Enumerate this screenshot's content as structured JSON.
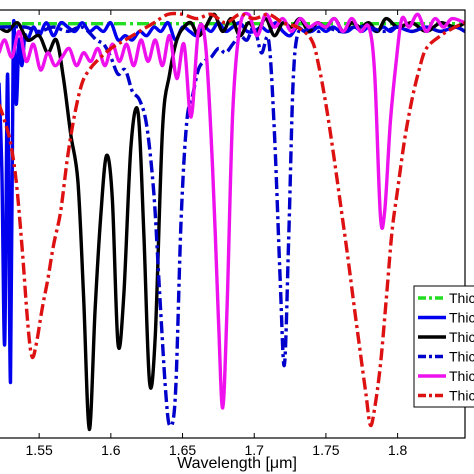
{
  "chart_data": {
    "type": "line",
    "xlabel": "Wavelength [μm]",
    "xlim": [
      1.522,
      1.847
    ],
    "ylim": [
      0,
      1
    ],
    "x_ticks": [
      1.55,
      1.6,
      1.65,
      1.7,
      1.75,
      1.8
    ],
    "x_tick_labels": [
      "1.55",
      "1.6",
      "1.65",
      "1.7",
      "1.75",
      "1.8"
    ],
    "grid": false,
    "legend_position": "bottom-right",
    "series": [
      {
        "name": "Thic",
        "color": "#22dd22",
        "dash": "dashdot",
        "x": [
          1.522,
          1.55,
          1.6,
          1.65,
          1.7,
          1.75,
          1.8,
          1.847
        ],
        "y": [
          0.968,
          0.968,
          0.968,
          0.968,
          0.968,
          0.968,
          0.968,
          0.968
        ]
      },
      {
        "name": "Thic",
        "color": "#0000ee",
        "dash": "solid",
        "x": [
          1.522,
          1.524,
          1.526,
          1.528,
          1.53,
          1.532,
          1.534,
          1.536,
          1.538,
          1.54,
          1.542,
          1.546,
          1.55,
          1.555,
          1.56,
          1.565,
          1.57,
          1.575,
          1.58,
          1.585,
          1.59,
          1.595,
          1.6,
          1.605,
          1.61,
          1.615,
          1.62,
          1.625,
          1.63,
          1.635,
          1.64,
          1.645,
          1.65,
          1.655,
          1.66,
          1.665,
          1.67,
          1.675,
          1.68,
          1.685,
          1.69,
          1.695,
          1.7,
          1.705,
          1.71,
          1.715,
          1.72,
          1.725,
          1.73,
          1.735,
          1.74,
          1.745,
          1.75,
          1.755,
          1.76,
          1.765,
          1.77,
          1.775,
          1.78,
          1.785,
          1.79,
          1.795,
          1.8,
          1.81,
          1.82,
          1.83,
          1.84,
          1.847
        ],
        "y": [
          0.83,
          0.62,
          0.22,
          0.85,
          0.13,
          0.95,
          0.78,
          0.93,
          0.87,
          0.94,
          0.93,
          0.96,
          0.94,
          0.97,
          0.94,
          0.97,
          0.96,
          0.95,
          0.97,
          0.95,
          0.96,
          0.95,
          0.97,
          0.93,
          0.94,
          0.93,
          0.95,
          0.94,
          0.96,
          0.95,
          0.97,
          0.93,
          0.96,
          0.95,
          0.94,
          0.96,
          0.95,
          0.97,
          0.95,
          0.96,
          0.97,
          0.95,
          0.95,
          0.96,
          0.95,
          0.97,
          0.95,
          0.94,
          0.96,
          0.95,
          0.95,
          0.96,
          0.95,
          0.96,
          0.95,
          0.95,
          0.96,
          0.95,
          0.96,
          0.95,
          0.96,
          0.95,
          0.96,
          0.95,
          0.96,
          0.95,
          0.96,
          0.95
        ]
      },
      {
        "name": "Thic",
        "color": "#000000",
        "dash": "solid",
        "x": [
          1.522,
          1.528,
          1.535,
          1.542,
          1.55,
          1.556,
          1.562,
          1.567,
          1.572,
          1.577,
          1.581,
          1.585,
          1.589,
          1.593,
          1.597,
          1.601,
          1.605,
          1.609,
          1.614,
          1.619,
          1.623,
          1.627,
          1.631,
          1.636,
          1.641,
          1.646,
          1.651,
          1.656,
          1.661,
          1.666,
          1.672,
          1.678,
          1.684,
          1.69,
          1.696,
          1.702,
          1.708,
          1.714,
          1.72,
          1.726,
          1.732,
          1.738,
          1.744,
          1.75,
          1.756,
          1.762,
          1.768,
          1.774,
          1.78,
          1.786,
          1.792,
          1.8,
          1.81,
          1.82,
          1.83,
          1.84,
          1.847
        ],
        "y": [
          0.96,
          0.95,
          0.97,
          0.93,
          0.94,
          0.9,
          0.93,
          0.84,
          0.71,
          0.6,
          0.33,
          0.02,
          0.3,
          0.52,
          0.66,
          0.56,
          0.22,
          0.33,
          0.68,
          0.76,
          0.48,
          0.13,
          0.24,
          0.72,
          0.85,
          0.93,
          0.96,
          0.97,
          0.94,
          0.96,
          0.99,
          0.95,
          0.98,
          0.94,
          0.97,
          0.95,
          0.98,
          0.94,
          0.97,
          0.96,
          0.98,
          0.95,
          0.97,
          0.96,
          0.98,
          0.95,
          0.97,
          0.96,
          0.97,
          0.95,
          0.98,
          0.96,
          0.97,
          0.95,
          0.97,
          0.96,
          0.97
        ]
      },
      {
        "name": "Thic",
        "color": "#0000cc",
        "dash": "dashdot",
        "x": [
          1.522,
          1.54,
          1.55,
          1.56,
          1.57,
          1.58,
          1.59,
          1.595,
          1.6,
          1.605,
          1.61,
          1.615,
          1.62,
          1.625,
          1.63,
          1.634,
          1.638,
          1.641,
          1.645,
          1.649,
          1.653,
          1.657,
          1.661,
          1.665,
          1.67,
          1.675,
          1.68,
          1.685,
          1.69,
          1.695,
          1.7,
          1.705,
          1.71,
          1.714,
          1.718,
          1.721,
          1.724,
          1.727,
          1.73,
          1.735,
          1.74,
          1.745,
          1.75,
          1.76,
          1.77,
          1.78,
          1.79,
          1.8,
          1.81,
          1.82,
          1.83,
          1.84,
          1.847
        ],
        "y": [
          0.96,
          0.96,
          0.95,
          0.96,
          0.95,
          0.96,
          0.93,
          0.92,
          0.89,
          0.85,
          0.86,
          0.81,
          0.79,
          0.73,
          0.57,
          0.34,
          0.12,
          0.03,
          0.1,
          0.51,
          0.74,
          0.8,
          0.86,
          0.88,
          0.89,
          0.91,
          0.9,
          0.92,
          0.94,
          0.93,
          0.96,
          0.9,
          0.93,
          0.72,
          0.38,
          0.17,
          0.46,
          0.82,
          0.94,
          0.95,
          0.96,
          0.95,
          0.96,
          0.95,
          0.96,
          0.96,
          0.95,
          0.96,
          0.95,
          0.96,
          0.95,
          0.96,
          0.95
        ]
      },
      {
        "name": "Thic",
        "color": "#ee11ee",
        "dash": "solid",
        "x": [
          1.522,
          1.526,
          1.531,
          1.536,
          1.541,
          1.546,
          1.551,
          1.556,
          1.561,
          1.566,
          1.571,
          1.576,
          1.581,
          1.586,
          1.591,
          1.596,
          1.601,
          1.606,
          1.611,
          1.616,
          1.621,
          1.626,
          1.631,
          1.636,
          1.641,
          1.646,
          1.651,
          1.656,
          1.661,
          1.666,
          1.671,
          1.675,
          1.678,
          1.681,
          1.685,
          1.69,
          1.696,
          1.702,
          1.708,
          1.714,
          1.72,
          1.726,
          1.732,
          1.738,
          1.744,
          1.75,
          1.756,
          1.762,
          1.768,
          1.774,
          1.78,
          1.784,
          1.788,
          1.791,
          1.795,
          1.799,
          1.803,
          1.808,
          1.814,
          1.82,
          1.826,
          1.832,
          1.838,
          1.847
        ],
        "y": [
          0.9,
          0.93,
          0.89,
          0.95,
          0.88,
          0.92,
          0.86,
          0.9,
          0.87,
          0.89,
          0.91,
          0.87,
          0.9,
          0.88,
          0.91,
          0.87,
          0.92,
          0.88,
          0.92,
          0.87,
          0.93,
          0.88,
          0.93,
          0.87,
          0.94,
          0.84,
          0.92,
          0.75,
          0.95,
          0.92,
          0.63,
          0.28,
          0.07,
          0.3,
          0.76,
          0.96,
          0.99,
          0.94,
          0.99,
          0.96,
          0.98,
          0.95,
          0.98,
          0.96,
          0.97,
          0.96,
          0.98,
          0.95,
          0.98,
          0.95,
          0.96,
          0.85,
          0.52,
          0.53,
          0.74,
          0.88,
          0.98,
          0.96,
          0.99,
          0.95,
          0.98,
          0.96,
          0.98,
          0.97
        ]
      },
      {
        "name": "Thic",
        "color": "#dd1111",
        "dash": "dashdot",
        "x": [
          1.522,
          1.526,
          1.53,
          1.534,
          1.538,
          1.542,
          1.545,
          1.548,
          1.552,
          1.556,
          1.56,
          1.565,
          1.57,
          1.575,
          1.58,
          1.585,
          1.59,
          1.6,
          1.61,
          1.62,
          1.63,
          1.64,
          1.65,
          1.66,
          1.67,
          1.68,
          1.69,
          1.7,
          1.71,
          1.72,
          1.73,
          1.74,
          1.745,
          1.75,
          1.755,
          1.76,
          1.765,
          1.77,
          1.774,
          1.778,
          1.781,
          1.784,
          1.788,
          1.792,
          1.796,
          1.8,
          1.805,
          1.81,
          1.815,
          1.82,
          1.83,
          1.84,
          1.847
        ],
        "y": [
          0.78,
          0.74,
          0.69,
          0.6,
          0.45,
          0.27,
          0.19,
          0.22,
          0.3,
          0.37,
          0.45,
          0.53,
          0.66,
          0.76,
          0.83,
          0.86,
          0.88,
          0.91,
          0.93,
          0.95,
          0.97,
          0.99,
          0.99,
          0.98,
          0.99,
          0.97,
          0.99,
          0.98,
          0.99,
          0.97,
          0.96,
          0.93,
          0.87,
          0.78,
          0.67,
          0.55,
          0.43,
          0.3,
          0.2,
          0.1,
          0.03,
          0.07,
          0.17,
          0.32,
          0.48,
          0.58,
          0.7,
          0.79,
          0.86,
          0.91,
          0.94,
          0.96,
          0.97
        ]
      }
    ]
  }
}
